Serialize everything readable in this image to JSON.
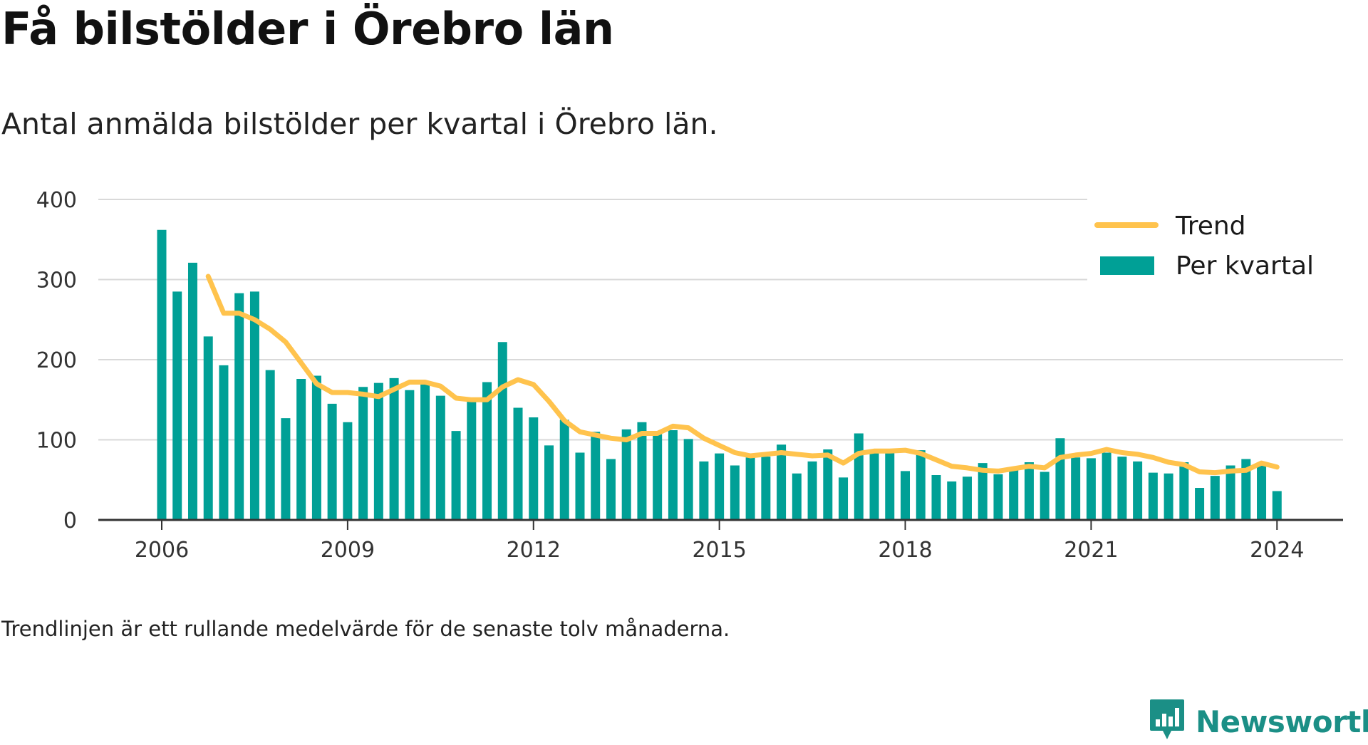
{
  "title": "Få bilstölder i Örebro län",
  "subtitle": "Antal anmälda bilstölder per kvartal i Örebro län.",
  "note": "Trendlinjen är ett rullande medelvärde för de senaste tolv månaderna.",
  "brand": {
    "name": "Newsworthy",
    "icon": "newsworthy-logo-icon"
  },
  "colors": {
    "bars": "#00a096",
    "trend": "#ffc34d",
    "grid": "#d9d9d9",
    "axis": "#333333",
    "brand": "#1b8f86"
  },
  "chart_data": {
    "type": "bar",
    "x_start_year": 2006,
    "ylim": [
      0,
      400
    ],
    "yticks": [
      0,
      100,
      200,
      300,
      400
    ],
    "xticks": [
      "2006",
      "2009",
      "2012",
      "2015",
      "2018",
      "2021",
      "2024"
    ],
    "grid": true,
    "legend_position": "top-right",
    "legend": [
      "Trend",
      "Per kvartal"
    ],
    "series": [
      {
        "name": "Per kvartal",
        "kind": "bar",
        "values": [
          362,
          285,
          321,
          229,
          193,
          283,
          285,
          187,
          127,
          176,
          180,
          145,
          122,
          166,
          171,
          177,
          162,
          170,
          155,
          111,
          152,
          172,
          222,
          140,
          128,
          93,
          125,
          84,
          110,
          76,
          113,
          122,
          107,
          112,
          101,
          73,
          83,
          68,
          78,
          79,
          94,
          58,
          73,
          88,
          53,
          108,
          85,
          86,
          61,
          87,
          56,
          48,
          54,
          71,
          57,
          64,
          72,
          60,
          102,
          78,
          77,
          84,
          79,
          73,
          59,
          58,
          72,
          40,
          55,
          68,
          76,
          69,
          36
        ]
      },
      {
        "name": "Trend",
        "kind": "line",
        "start_index": 3,
        "values": [
          304,
          258,
          258,
          250,
          238,
          222,
          196,
          170,
          159,
          159,
          157,
          154,
          163,
          172,
          172,
          167,
          152,
          150,
          150,
          166,
          175,
          169,
          148,
          124,
          110,
          106,
          102,
          100,
          108,
          108,
          117,
          115,
          102,
          93,
          84,
          80,
          82,
          84,
          82,
          80,
          81,
          71,
          83,
          86,
          86,
          87,
          83,
          75,
          67,
          65,
          62,
          61,
          64,
          67,
          65,
          78,
          81,
          83,
          88,
          84,
          82,
          78,
          72,
          69,
          60,
          59,
          61,
          62,
          71,
          66
        ]
      }
    ]
  }
}
